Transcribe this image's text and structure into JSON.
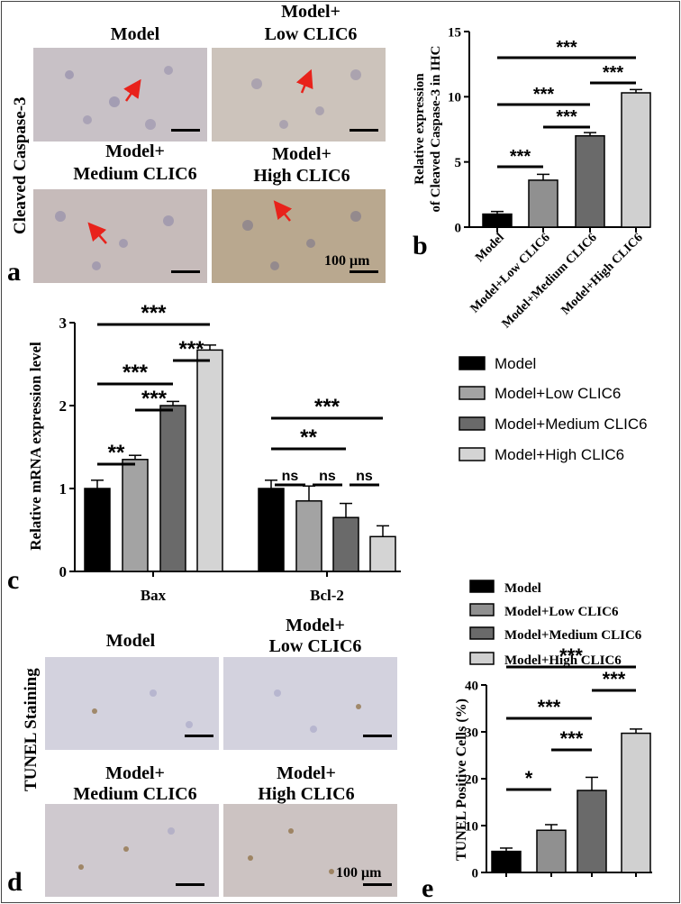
{
  "panel_a": {
    "letter": "a",
    "row_label": "Cleaved Caspase-3",
    "titles": [
      "Model",
      "Model+",
      "Low CLIC6",
      "Model+",
      "Medium CLIC6",
      "Model+",
      "High CLIC6"
    ],
    "scale": "100 μm"
  },
  "panel_d": {
    "letter": "d",
    "row_label": "TUNEL Staining",
    "titles": [
      "Model",
      "Model+",
      "Low CLIC6",
      "Model+",
      "Medium CLIC6",
      "Model+",
      "High CLIC6"
    ],
    "scale": "100 μm"
  },
  "chart_data": [
    {
      "id": "b",
      "letter": "b",
      "type": "bar",
      "categories": [
        "Model",
        "Model+Low CLIC6",
        "Model+Medium CLIC6",
        "Model+High CLIC6"
      ],
      "values": [
        1.0,
        3.6,
        7.0,
        10.3
      ],
      "errors": [
        0.2,
        0.45,
        0.25,
        0.25
      ],
      "colors": [
        "#000000",
        "#909090",
        "#6a6a6a",
        "#d0d0d0"
      ],
      "ylabel": [
        "Relative expression",
        "of Cleaved Caspase-3 in IHC"
      ],
      "ylim": [
        0,
        15
      ],
      "yticks": [
        0,
        5,
        10,
        15
      ],
      "significance": [
        {
          "from": 0,
          "to": 1,
          "label": "***"
        },
        {
          "from": 1,
          "to": 2,
          "label": "***"
        },
        {
          "from": 0,
          "to": 2,
          "label": "***"
        },
        {
          "from": 2,
          "to": 3,
          "label": "***"
        },
        {
          "from": 0,
          "to": 3,
          "label": "***"
        }
      ]
    },
    {
      "id": "c",
      "letter": "c",
      "type": "bar",
      "groups": [
        "Bax",
        "Bcl-2"
      ],
      "series": [
        {
          "name": "Model",
          "values": [
            1.0,
            1.0
          ],
          "errors": [
            0.1,
            0.1
          ],
          "color": "#000000"
        },
        {
          "name": "Model+Low CLIC6",
          "values": [
            1.35,
            0.85
          ],
          "errors": [
            0.05,
            0.18
          ],
          "color": "#a3a3a3"
        },
        {
          "name": "Model+Medium CLIC6",
          "values": [
            2.0,
            0.65
          ],
          "errors": [
            0.05,
            0.17
          ],
          "color": "#6a6a6a"
        },
        {
          "name": "Model+High CLIC6",
          "values": [
            2.67,
            0.42
          ],
          "errors": [
            0.06,
            0.13
          ],
          "color": "#d4d4d4"
        }
      ],
      "ylabel": "Relative mRNA expression level",
      "ylim": [
        0,
        3
      ],
      "yticks": [
        0,
        1,
        2,
        3
      ],
      "significance": [
        {
          "group": 0,
          "from": 0,
          "to": 1,
          "label": "**"
        },
        {
          "group": 0,
          "from": 1,
          "to": 2,
          "label": "***"
        },
        {
          "group": 0,
          "from": 0,
          "to": 2,
          "label": "***"
        },
        {
          "group": 0,
          "from": 2,
          "to": 3,
          "label": "***"
        },
        {
          "group": 0,
          "from": 0,
          "to": 3,
          "label": "***"
        },
        {
          "group": 1,
          "from": 0,
          "to": 1,
          "label": "ns"
        },
        {
          "group": 1,
          "from": 1,
          "to": 2,
          "label": "ns"
        },
        {
          "group": 1,
          "from": 2,
          "to": 3,
          "label": "ns"
        },
        {
          "group": 1,
          "from": 0,
          "to": 2,
          "label": "**"
        },
        {
          "group": 1,
          "from": 0,
          "to": 3,
          "label": "***"
        }
      ]
    },
    {
      "id": "e",
      "letter": "e",
      "type": "bar",
      "categories": [
        "Model",
        "Model+Low CLIC6",
        "Model+Medium CLIC6",
        "Model+High CLIC6"
      ],
      "values": [
        4.5,
        9.0,
        17.5,
        29.7
      ],
      "errors": [
        0.7,
        1.2,
        2.8,
        0.9
      ],
      "colors": [
        "#000000",
        "#909090",
        "#6a6a6a",
        "#d0d0d0"
      ],
      "ylabel": "TUNEL Positive Cells (%)",
      "ylim": [
        0,
        40
      ],
      "yticks": [
        0,
        10,
        20,
        30,
        40
      ],
      "significance": [
        {
          "from": 0,
          "to": 1,
          "label": "*"
        },
        {
          "from": 1,
          "to": 2,
          "label": "***"
        },
        {
          "from": 0,
          "to": 2,
          "label": "***"
        },
        {
          "from": 2,
          "to": 3,
          "label": "***"
        },
        {
          "from": 0,
          "to": 3,
          "label": "***"
        }
      ]
    }
  ]
}
